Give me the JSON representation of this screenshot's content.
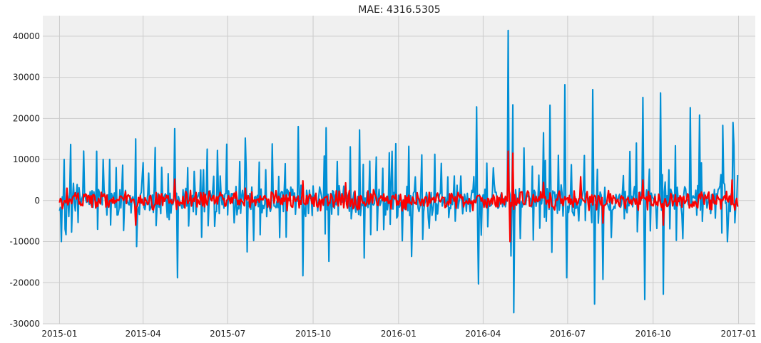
{
  "chart_data": {
    "type": "line",
    "title": "MAE: 4316.5305",
    "xlabel": "",
    "ylabel": "",
    "x_range": [
      "2015-01-01",
      "2016-12-31"
    ],
    "ylim": [
      -30000,
      45000
    ],
    "grid": true,
    "x_ticks": [
      "2015-01",
      "2015-04",
      "2015-07",
      "2015-10",
      "2016-01",
      "2016-04",
      "2016-07",
      "2016-10",
      "2017-01"
    ],
    "y_ticks": [
      "-30000",
      "-20000",
      "-10000",
      "0",
      "10000",
      "20000",
      "30000",
      "40000"
    ],
    "series": [
      {
        "color": "#008fd5",
        "note_points": "daily differenced values with weekly spikes",
        "points": [
          [
            "2015-01-01",
            -2500
          ],
          [
            "2015-01-03",
            -10000
          ],
          [
            "2015-01-05",
            200
          ],
          [
            "2015-01-06",
            10000
          ],
          [
            "2015-01-08",
            -8300
          ],
          [
            "2015-01-12",
            2200
          ],
          [
            "2015-01-16",
            4200
          ],
          [
            "2015-01-20",
            3900
          ],
          [
            "2015-02-10",
            12000
          ],
          [
            "2015-02-11",
            -7000
          ],
          [
            "2015-02-17",
            10000
          ],
          [
            "2015-02-24",
            10000
          ],
          [
            "2015-03-03",
            8000
          ],
          [
            "2015-03-10",
            8600
          ],
          [
            "2015-03-24",
            15000
          ],
          [
            "2015-03-25",
            -11200
          ],
          [
            "2015-04-01",
            9200
          ],
          [
            "2015-05-05",
            17500
          ],
          [
            "2015-05-08",
            -18800
          ],
          [
            "2015-06-05",
            7500
          ],
          [
            "2015-06-20",
            12200
          ],
          [
            "2015-07-20",
            15200
          ],
          [
            "2015-07-22",
            -12500
          ],
          [
            "2015-09-15",
            18000
          ],
          [
            "2015-09-20",
            -18300
          ],
          [
            "2015-10-15",
            17700
          ],
          [
            "2015-10-18",
            -14800
          ],
          [
            "2015-11-20",
            17200
          ],
          [
            "2015-11-25",
            -14000
          ],
          [
            "2015-12-25",
            12000
          ],
          [
            "2016-01-05",
            -9800
          ],
          [
            "2016-01-12",
            13200
          ],
          [
            "2016-01-15",
            -13600
          ],
          [
            "2016-03-25",
            22800
          ],
          [
            "2016-03-27",
            -20300
          ],
          [
            "2016-04-28",
            41400
          ],
          [
            "2016-05-01",
            -13500
          ],
          [
            "2016-05-03",
            23300
          ],
          [
            "2016-05-04",
            -27300
          ],
          [
            "2016-05-15",
            12800
          ],
          [
            "2016-06-05",
            16500
          ],
          [
            "2016-06-12",
            23200
          ],
          [
            "2016-06-14",
            -12600
          ],
          [
            "2016-06-28",
            28200
          ],
          [
            "2016-06-30",
            -18800
          ],
          [
            "2016-07-28",
            27000
          ],
          [
            "2016-07-30",
            -25200
          ],
          [
            "2016-08-08",
            -19200
          ],
          [
            "2016-09-20",
            25100
          ],
          [
            "2016-09-22",
            -24100
          ],
          [
            "2016-10-09",
            26200
          ],
          [
            "2016-10-12",
            -22800
          ],
          [
            "2016-11-10",
            22600
          ],
          [
            "2016-11-20",
            20800
          ],
          [
            "2016-12-15",
            18300
          ],
          [
            "2016-12-20",
            -10000
          ],
          [
            "2016-12-26",
            19000
          ],
          [
            "2016-12-31",
            6200
          ]
        ]
      },
      {
        "color": "#fc0000",
        "note_points": "model residual band",
        "points": [
          [
            "2015-01-01",
            -500
          ],
          [
            "2015-01-04",
            -2000
          ],
          [
            "2015-01-09",
            3000
          ],
          [
            "2015-02-15",
            2000
          ],
          [
            "2015-03-24",
            -6000
          ],
          [
            "2015-05-05",
            5200
          ],
          [
            "2015-07-20",
            3000
          ],
          [
            "2015-09-20",
            4800
          ],
          [
            "2015-11-05",
            4300
          ],
          [
            "2016-01-05",
            -2500
          ],
          [
            "2016-04-28",
            12000
          ],
          [
            "2016-04-30",
            -10000
          ],
          [
            "2016-05-03",
            11500
          ],
          [
            "2016-06-05",
            4400
          ],
          [
            "2016-07-15",
            5800
          ],
          [
            "2016-08-08",
            -5500
          ],
          [
            "2016-09-20",
            5000
          ],
          [
            "2016-10-12",
            -6000
          ],
          [
            "2016-12-25",
            5000
          ],
          [
            "2016-12-31",
            -1500
          ]
        ]
      }
    ]
  }
}
